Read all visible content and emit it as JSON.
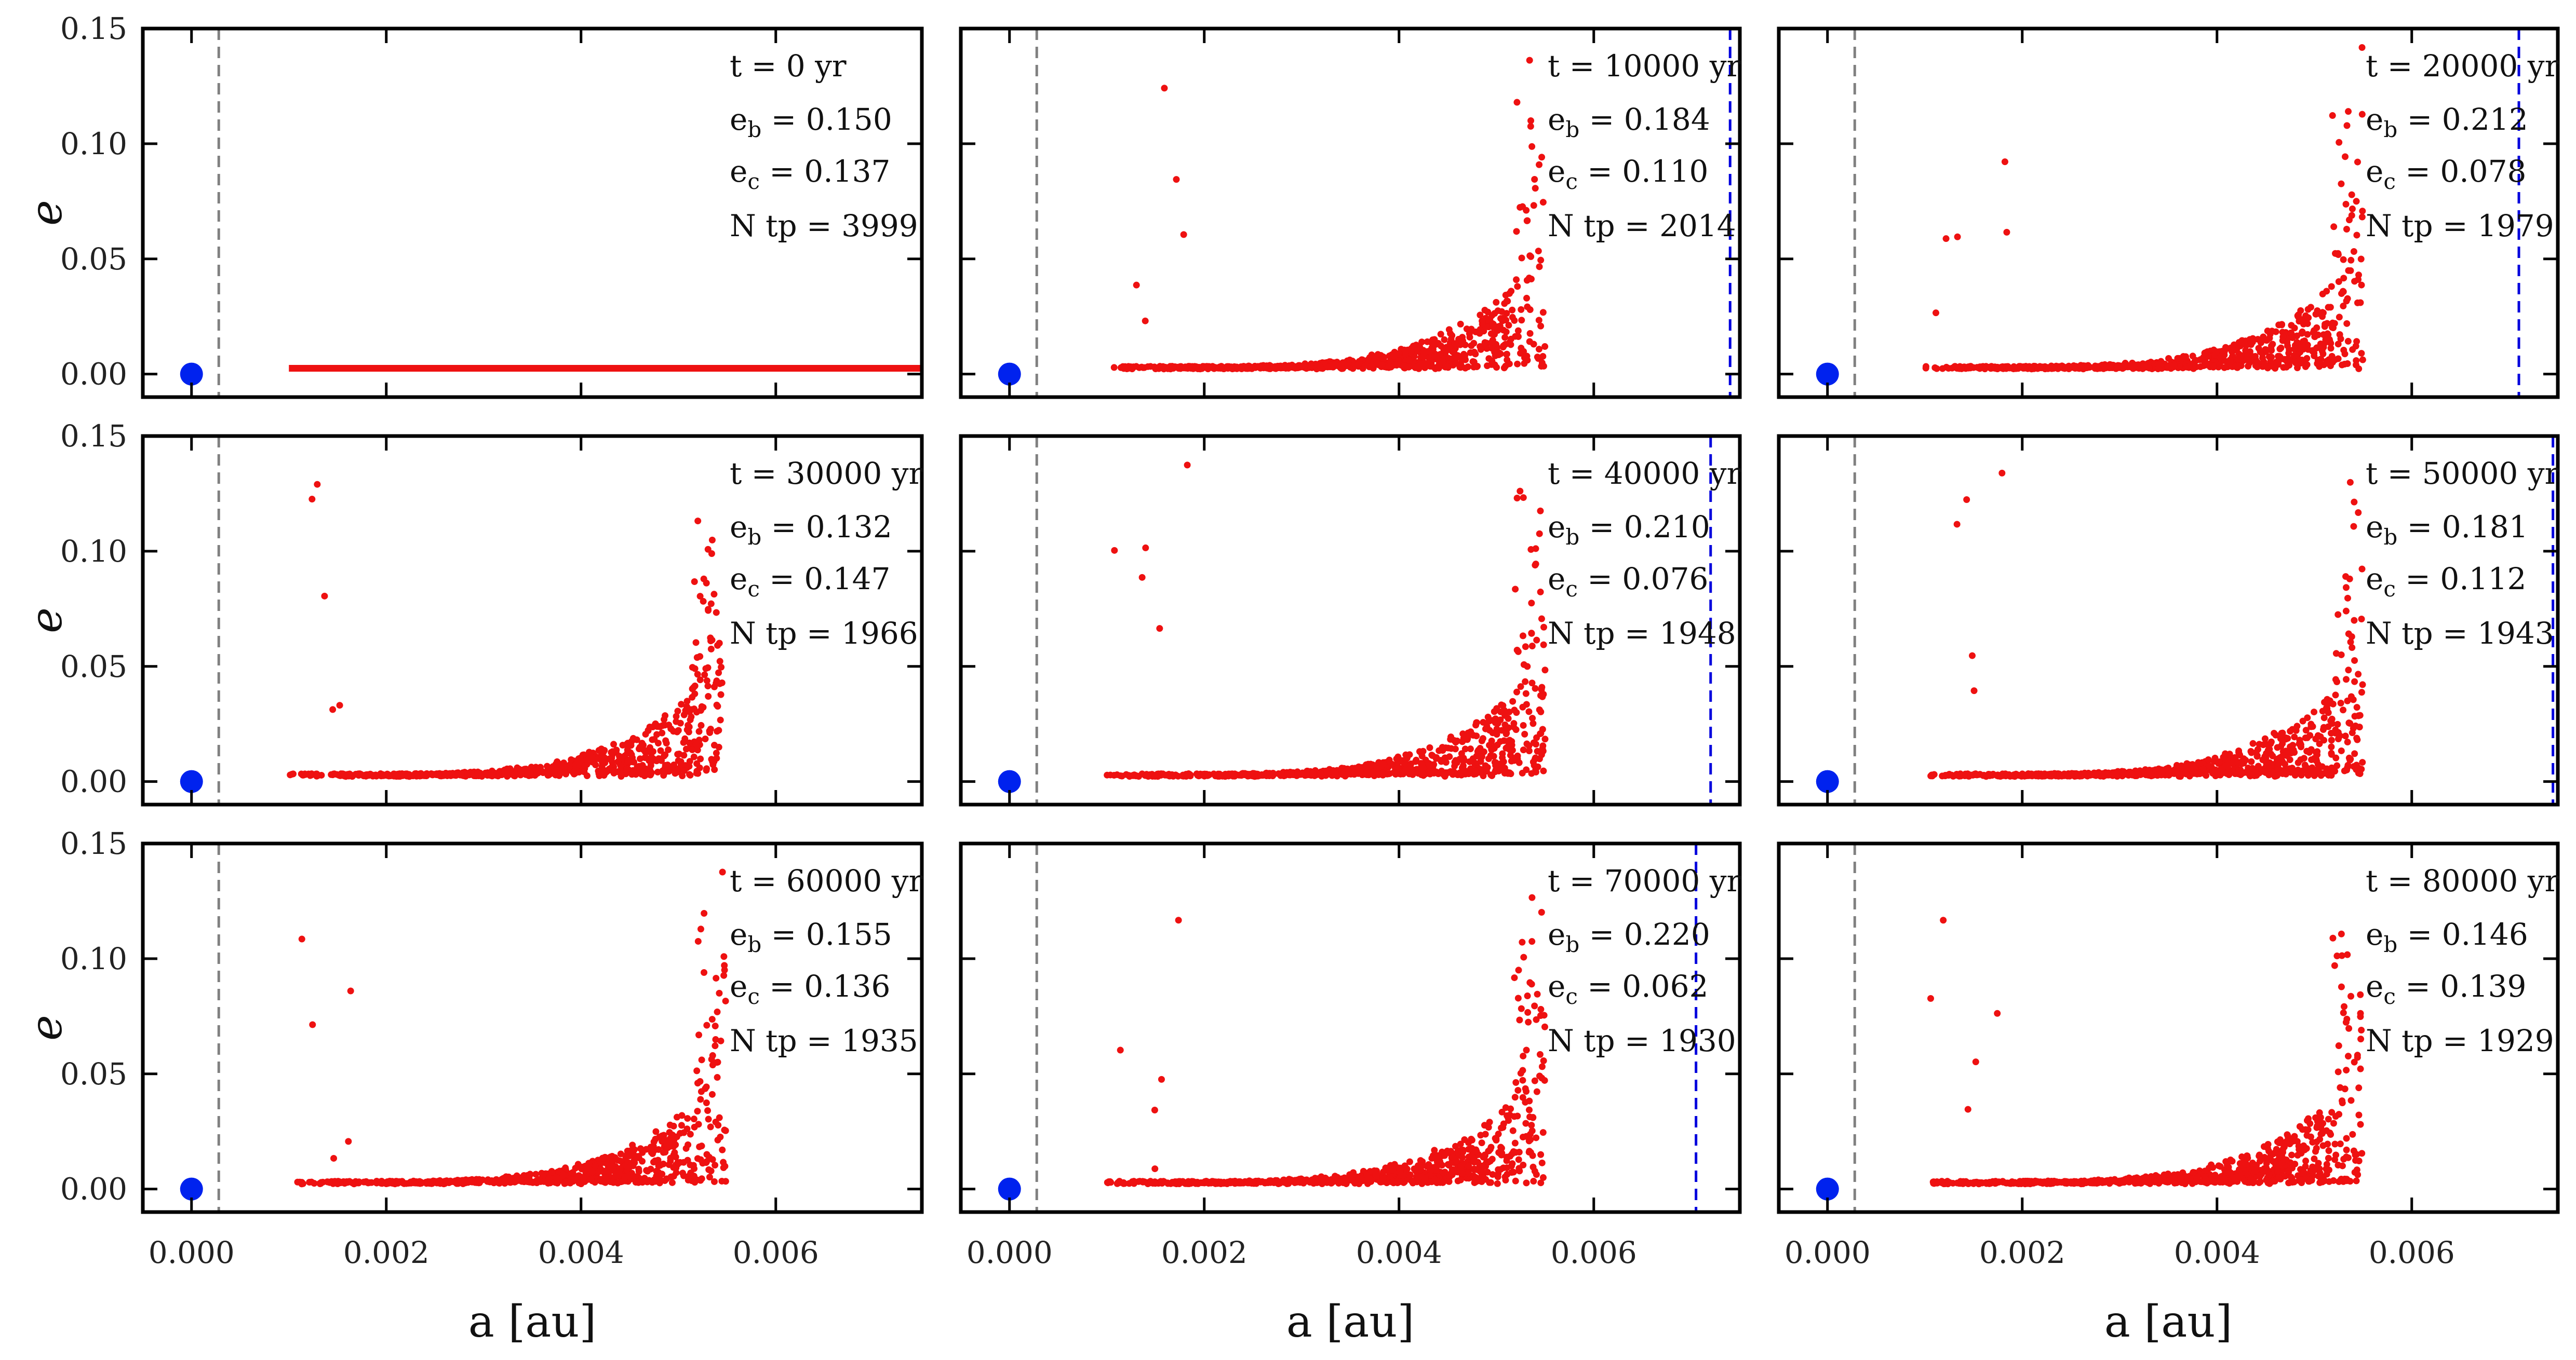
{
  "chart_data": {
    "type": "scatter",
    "layout": "3x3 grid of panels with shared axes",
    "xlabel": "a [au]",
    "ylabel": "e",
    "xlim": [
      -0.0005,
      0.0075
    ],
    "ylim": [
      -0.01,
      0.15
    ],
    "xticks": [
      0.0,
      0.002,
      0.004,
      0.006
    ],
    "xtick_labels": [
      "0.000",
      "0.002",
      "0.004",
      "0.006"
    ],
    "yticks": [
      0.0,
      0.05,
      0.1,
      0.15
    ],
    "ytick_labels": [
      "0.00",
      "0.05",
      "0.10",
      "0.15"
    ],
    "reference_line": {
      "x": 0.00028,
      "style": "dashed",
      "color": "#808080"
    },
    "central_body": {
      "a": 0.0,
      "e": 0.0,
      "color": "#0022ee"
    },
    "test_particle_color": "#ee1111",
    "planet_line_color": "#0000dd",
    "panels": [
      {
        "t_label": "t = 0 yr",
        "eb_prefix": "e",
        "eb_sub": "b",
        "eb_value": " = 0.150",
        "ec_prefix": "e",
        "ec_sub": "c",
        "ec_value": " = 0.137",
        "ntp_label": "N tp = 3999",
        "initial": true,
        "planet_a": null,
        "a_min": 0.001,
        "a_max": 0.0075,
        "seed": 101
      },
      {
        "t_label": "t = 10000 yr",
        "eb_prefix": "e",
        "eb_sub": "b",
        "eb_value": " = 0.184",
        "ec_prefix": "e",
        "ec_sub": "c",
        "ec_value": " = 0.110",
        "ntp_label": "N tp = 2014",
        "initial": false,
        "planet_a": 0.0074,
        "a_min": 0.00105,
        "a_max": 0.0055,
        "seed": 202
      },
      {
        "t_label": "t = 20000 yr",
        "eb_prefix": "e",
        "eb_sub": "b",
        "eb_value": " = 0.212",
        "ec_prefix": "e",
        "ec_sub": "c",
        "ec_value": " = 0.078",
        "ntp_label": "N tp = 1979",
        "initial": false,
        "planet_a": 0.0071,
        "a_min": 0.001,
        "a_max": 0.0055,
        "seed": 303
      },
      {
        "t_label": "t = 30000 yr",
        "eb_prefix": "e",
        "eb_sub": "b",
        "eb_value": " = 0.132",
        "ec_prefix": "e",
        "ec_sub": "c",
        "ec_value": " = 0.147",
        "ntp_label": "N tp = 1966",
        "initial": false,
        "planet_a": null,
        "a_min": 0.001,
        "a_max": 0.00545,
        "seed": 404
      },
      {
        "t_label": "t = 40000 yr",
        "eb_prefix": "e",
        "eb_sub": "b",
        "eb_value": " = 0.210",
        "ec_prefix": "e",
        "ec_sub": "c",
        "ec_value": " = 0.076",
        "ntp_label": "N tp = 1948",
        "initial": false,
        "planet_a": 0.0072,
        "a_min": 0.001,
        "a_max": 0.0055,
        "seed": 505
      },
      {
        "t_label": "t = 50000 yr",
        "eb_prefix": "e",
        "eb_sub": "b",
        "eb_value": " = 0.181",
        "ec_prefix": "e",
        "ec_sub": "c",
        "ec_value": " = 0.112",
        "ntp_label": "N tp = 1943",
        "initial": false,
        "planet_a": 0.00745,
        "a_min": 0.001,
        "a_max": 0.0055,
        "seed": 606
      },
      {
        "t_label": "t = 60000 yr",
        "eb_prefix": "e",
        "eb_sub": "b",
        "eb_value": " = 0.155",
        "ec_prefix": "e",
        "ec_sub": "c",
        "ec_value": " = 0.136",
        "ntp_label": "N tp = 1935",
        "initial": false,
        "planet_a": null,
        "a_min": 0.001,
        "a_max": 0.0055,
        "seed": 707
      },
      {
        "t_label": "t = 70000 yr",
        "eb_prefix": "e",
        "eb_sub": "b",
        "eb_value": " = 0.220",
        "ec_prefix": "e",
        "ec_sub": "c",
        "ec_value": " = 0.062",
        "ntp_label": "N tp = 1930",
        "initial": false,
        "planet_a": 0.00705,
        "a_min": 0.001,
        "a_max": 0.0055,
        "seed": 808
      },
      {
        "t_label": "t = 80000 yr",
        "eb_prefix": "e",
        "eb_sub": "b",
        "eb_value": " = 0.146",
        "ec_prefix": "e",
        "ec_sub": "c",
        "ec_value": " = 0.139",
        "ntp_label": "N tp = 1929",
        "initial": false,
        "planet_a": null,
        "a_min": 0.001,
        "a_max": 0.0055,
        "seed": 909
      }
    ]
  }
}
